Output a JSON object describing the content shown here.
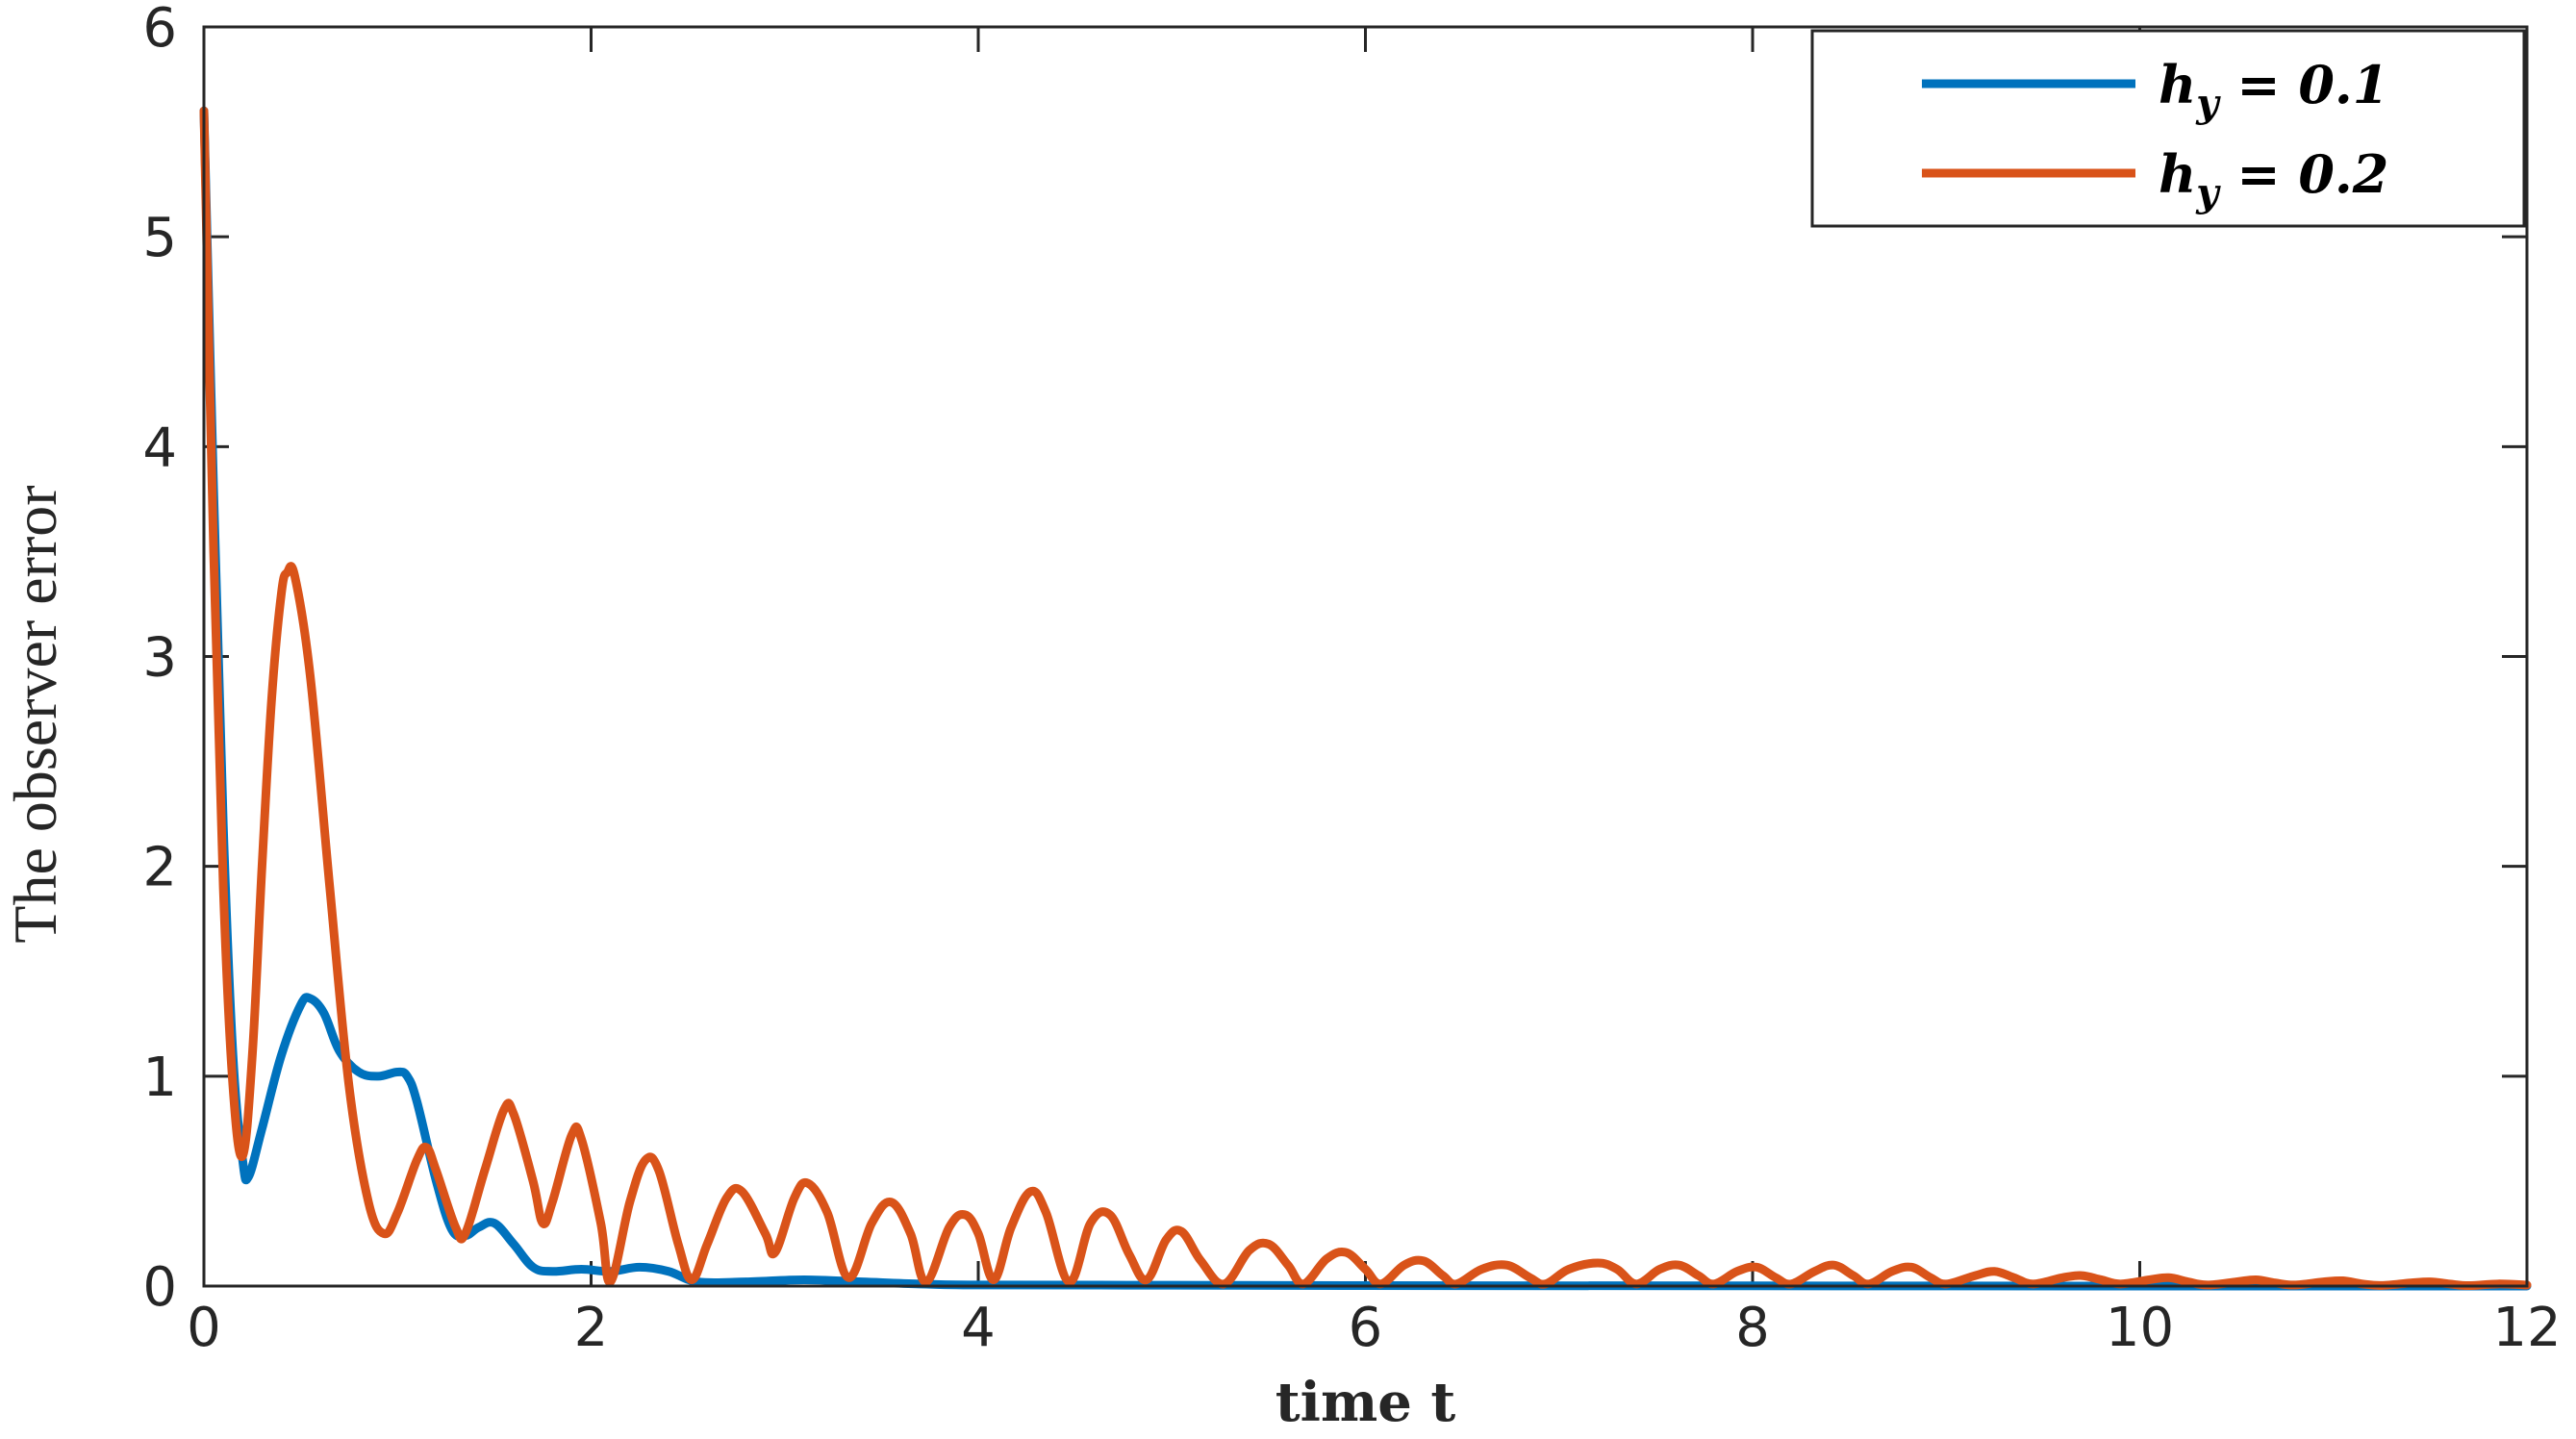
{
  "chart_data": {
    "type": "line",
    "xlabel": "time t",
    "ylabel": "The observer error",
    "xlim": [
      0,
      12
    ],
    "ylim": [
      0,
      6
    ],
    "xticks": [
      "0",
      "2",
      "4",
      "6",
      "8",
      "10",
      "12"
    ],
    "yticks": [
      "0",
      "1",
      "2",
      "3",
      "4",
      "5",
      "6"
    ],
    "grid": false,
    "legend_position": "top-right",
    "series": [
      {
        "name": "h_y = 0.1",
        "legend_label": "hy = 0.1",
        "color": "#0072BD",
        "points": [
          [
            0.0,
            5.6
          ],
          [
            0.05,
            3.8
          ],
          [
            0.1,
            2.2
          ],
          [
            0.15,
            1.1
          ],
          [
            0.2,
            0.6
          ],
          [
            0.23,
            0.52
          ],
          [
            0.3,
            0.75
          ],
          [
            0.4,
            1.1
          ],
          [
            0.5,
            1.34
          ],
          [
            0.55,
            1.37
          ],
          [
            0.62,
            1.3
          ],
          [
            0.7,
            1.12
          ],
          [
            0.8,
            1.02
          ],
          [
            0.9,
            1.0
          ],
          [
            1.0,
            1.02
          ],
          [
            1.05,
            1.0
          ],
          [
            1.1,
            0.88
          ],
          [
            1.2,
            0.5
          ],
          [
            1.28,
            0.27
          ],
          [
            1.35,
            0.24
          ],
          [
            1.42,
            0.28
          ],
          [
            1.5,
            0.3
          ],
          [
            1.6,
            0.2
          ],
          [
            1.7,
            0.09
          ],
          [
            1.8,
            0.07
          ],
          [
            1.95,
            0.08
          ],
          [
            2.1,
            0.07
          ],
          [
            2.25,
            0.09
          ],
          [
            2.4,
            0.07
          ],
          [
            2.55,
            0.02
          ],
          [
            2.8,
            0.02
          ],
          [
            3.1,
            0.03
          ],
          [
            3.4,
            0.02
          ],
          [
            3.7,
            0.01
          ],
          [
            4.0,
            0.005
          ],
          [
            5.0,
            0.004
          ],
          [
            6.0,
            0.002
          ],
          [
            8.0,
            0.001
          ],
          [
            10.0,
            0.0
          ],
          [
            12.0,
            0.0
          ]
        ]
      },
      {
        "name": "h_y = 0.2",
        "legend_label": "hy = 0.2",
        "color": "#D95319",
        "points": [
          [
            0.0,
            5.6
          ],
          [
            0.05,
            3.5
          ],
          [
            0.1,
            1.9
          ],
          [
            0.15,
            0.95
          ],
          [
            0.2,
            0.62
          ],
          [
            0.25,
            1.1
          ],
          [
            0.3,
            2.0
          ],
          [
            0.35,
            2.8
          ],
          [
            0.4,
            3.3
          ],
          [
            0.43,
            3.4
          ],
          [
            0.47,
            3.38
          ],
          [
            0.55,
            2.9
          ],
          [
            0.65,
            1.9
          ],
          [
            0.75,
            0.95
          ],
          [
            0.85,
            0.4
          ],
          [
            0.93,
            0.25
          ],
          [
            1.0,
            0.35
          ],
          [
            1.1,
            0.6
          ],
          [
            1.15,
            0.66
          ],
          [
            1.2,
            0.55
          ],
          [
            1.3,
            0.28
          ],
          [
            1.35,
            0.25
          ],
          [
            1.45,
            0.55
          ],
          [
            1.55,
            0.84
          ],
          [
            1.6,
            0.82
          ],
          [
            1.7,
            0.5
          ],
          [
            1.75,
            0.3
          ],
          [
            1.8,
            0.4
          ],
          [
            1.9,
            0.72
          ],
          [
            1.95,
            0.7
          ],
          [
            2.05,
            0.3
          ],
          [
            2.1,
            0.02
          ],
          [
            2.2,
            0.4
          ],
          [
            2.28,
            0.6
          ],
          [
            2.35,
            0.55
          ],
          [
            2.45,
            0.2
          ],
          [
            2.52,
            0.03
          ],
          [
            2.6,
            0.2
          ],
          [
            2.7,
            0.42
          ],
          [
            2.78,
            0.45
          ],
          [
            2.9,
            0.25
          ],
          [
            2.95,
            0.16
          ],
          [
            3.05,
            0.42
          ],
          [
            3.12,
            0.49
          ],
          [
            3.22,
            0.35
          ],
          [
            3.33,
            0.04
          ],
          [
            3.45,
            0.3
          ],
          [
            3.55,
            0.4
          ],
          [
            3.65,
            0.25
          ],
          [
            3.73,
            0.02
          ],
          [
            3.85,
            0.28
          ],
          [
            3.93,
            0.34
          ],
          [
            4.0,
            0.25
          ],
          [
            4.08,
            0.03
          ],
          [
            4.17,
            0.28
          ],
          [
            4.27,
            0.45
          ],
          [
            4.35,
            0.35
          ],
          [
            4.47,
            0.02
          ],
          [
            4.58,
            0.3
          ],
          [
            4.68,
            0.34
          ],
          [
            4.78,
            0.15
          ],
          [
            4.87,
            0.03
          ],
          [
            4.97,
            0.22
          ],
          [
            5.05,
            0.26
          ],
          [
            5.15,
            0.12
          ],
          [
            5.27,
            0.01
          ],
          [
            5.4,
            0.17
          ],
          [
            5.5,
            0.2
          ],
          [
            5.6,
            0.1
          ],
          [
            5.68,
            0.01
          ],
          [
            5.8,
            0.13
          ],
          [
            5.9,
            0.16
          ],
          [
            6.0,
            0.08
          ],
          [
            6.08,
            0.01
          ],
          [
            6.2,
            0.1
          ],
          [
            6.3,
            0.12
          ],
          [
            6.4,
            0.05
          ],
          [
            6.47,
            0.01
          ],
          [
            6.6,
            0.08
          ],
          [
            6.73,
            0.1
          ],
          [
            6.85,
            0.04
          ],
          [
            6.93,
            0.01
          ],
          [
            7.05,
            0.08
          ],
          [
            7.2,
            0.11
          ],
          [
            7.3,
            0.08
          ],
          [
            7.4,
            0.01
          ],
          [
            7.52,
            0.08
          ],
          [
            7.62,
            0.1
          ],
          [
            7.72,
            0.05
          ],
          [
            7.8,
            0.01
          ],
          [
            7.92,
            0.07
          ],
          [
            8.02,
            0.09
          ],
          [
            8.12,
            0.04
          ],
          [
            8.2,
            0.01
          ],
          [
            8.32,
            0.07
          ],
          [
            8.42,
            0.1
          ],
          [
            8.52,
            0.05
          ],
          [
            8.6,
            0.01
          ],
          [
            8.72,
            0.07
          ],
          [
            8.82,
            0.09
          ],
          [
            8.92,
            0.04
          ],
          [
            9.0,
            0.01
          ],
          [
            9.15,
            0.05
          ],
          [
            9.25,
            0.07
          ],
          [
            9.35,
            0.04
          ],
          [
            9.45,
            0.01
          ],
          [
            9.6,
            0.04
          ],
          [
            9.7,
            0.05
          ],
          [
            9.8,
            0.03
          ],
          [
            9.9,
            0.01
          ],
          [
            10.05,
            0.03
          ],
          [
            10.15,
            0.04
          ],
          [
            10.25,
            0.02
          ],
          [
            10.35,
            0.005
          ],
          [
            10.5,
            0.02
          ],
          [
            10.6,
            0.03
          ],
          [
            10.7,
            0.015
          ],
          [
            10.8,
            0.005
          ],
          [
            10.95,
            0.02
          ],
          [
            11.05,
            0.025
          ],
          [
            11.15,
            0.01
          ],
          [
            11.25,
            0.003
          ],
          [
            11.4,
            0.015
          ],
          [
            11.5,
            0.02
          ],
          [
            11.6,
            0.01
          ],
          [
            11.7,
            0.002
          ],
          [
            11.85,
            0.01
          ],
          [
            12.0,
            0.005
          ]
        ]
      }
    ]
  }
}
